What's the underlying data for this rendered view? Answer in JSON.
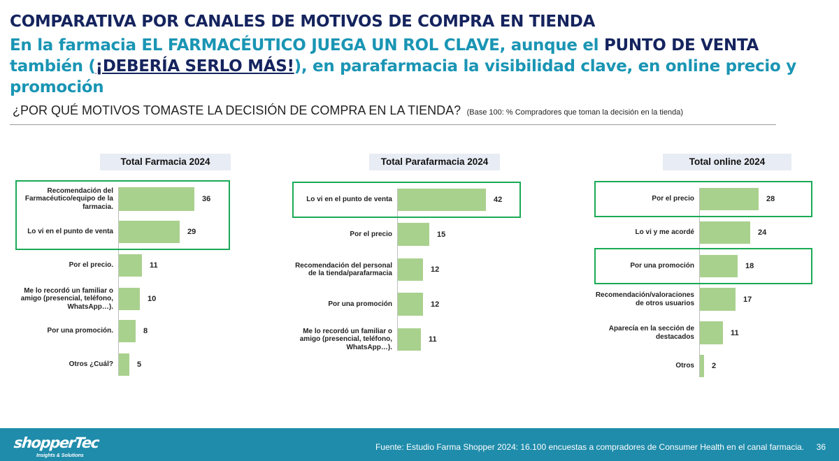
{
  "header": {
    "title": "COMPARATIVA POR CANALES DE MOTIVOS DE COMPRA EN TIENDA",
    "subtitle_parts": [
      {
        "text": "En la farmacia ",
        "style": "teal"
      },
      {
        "text": "EL FARMACÉUTICO JUEGA UN ROL CLAVE",
        "style": "teal"
      },
      {
        "text": ", aunque el ",
        "style": "teal"
      },
      {
        "text": "PUNTO DE VENTA",
        "style": "navy"
      },
      {
        "text": " también (",
        "style": "teal"
      },
      {
        "text": "¡DEBERÍA SERLO MÁS!",
        "style": "navy-underline"
      },
      {
        "text": "), en parafarmacia la visibilidad clave, en online precio y promoción",
        "style": "teal"
      }
    ],
    "question": "¿POR QUÉ MOTIVOS TOMASTE LA DECISIÓN DE COMPRA EN LA TIENDA?",
    "question_note": "(Base 100: % Compradores que toman la decisión en la tienda)"
  },
  "colors": {
    "bar": "#a9d18e",
    "highlight": "#1aaa55",
    "title_navy": "#15245e",
    "title_teal": "#1a95b4",
    "footer": "#1f8cab"
  },
  "chart_data": [
    {
      "type": "bar",
      "orientation": "horizontal",
      "title": "Total Farmacia 2024",
      "categories": [
        "Recomendación del Farmacéutico/equipo de la farmacia.",
        "Lo vi en el punto de venta",
        "Por el precio.",
        "Me lo recordó un familiar o amigo (presencial, teléfono, WhatsApp…).",
        "Por una promoción.",
        "Otros ¿Cuál?"
      ],
      "values": [
        36,
        29,
        11,
        10,
        8,
        5
      ],
      "highlighted_groups": [
        [
          0,
          1
        ]
      ]
    },
    {
      "type": "bar",
      "orientation": "horizontal",
      "title": "Total Parafarmacia 2024",
      "categories": [
        "Lo vi en el punto de venta",
        "Por el precio",
        "Recomendación del personal de la tienda/parafarmacia",
        "Por una promoción",
        "Me lo recordó un familiar o amigo (presencial, teléfono, WhatsApp…)."
      ],
      "values": [
        42,
        15,
        12,
        12,
        11
      ],
      "highlighted_groups": [
        [
          0
        ]
      ]
    },
    {
      "type": "bar",
      "orientation": "horizontal",
      "title": "Total online 2024",
      "categories": [
        "Por el precio",
        "Lo vi y me acordé",
        "Por una promoción",
        "Recomendación/valoraciones de otros usuarios",
        "Aparecía en la sección de destacados",
        "Otros"
      ],
      "values": [
        28,
        24,
        18,
        17,
        11,
        2
      ],
      "highlighted_groups": [
        [
          0
        ],
        [
          2
        ]
      ]
    }
  ],
  "footer": {
    "logo": "shopperTec",
    "tagline": "Insights & Solutions",
    "source": "Fuente: Estudio Farma Shopper 2024: 16.100 encuestas a compradores de Consumer Health en el canal farmacia.",
    "page_number": "36"
  }
}
